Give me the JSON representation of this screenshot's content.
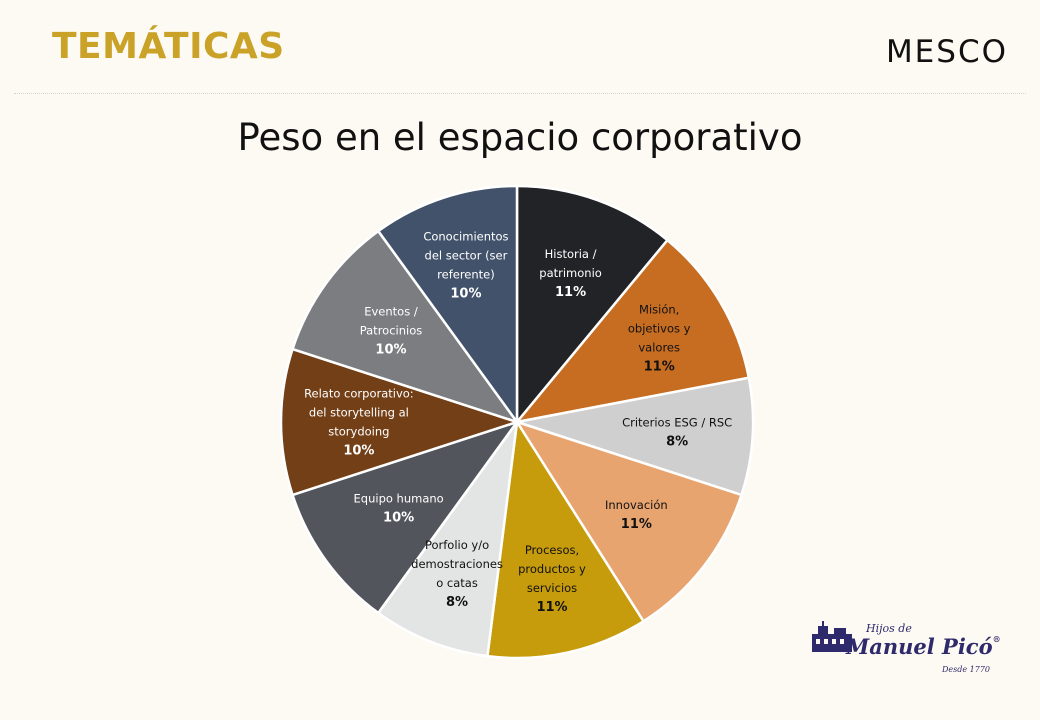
{
  "header": {
    "section_title": "TEMÁTICAS",
    "brand": "MESCO"
  },
  "logo": {
    "line1": "Hijos de",
    "line2": "Manuel Picó",
    "line3": "Desde 1770",
    "color": "#2f2a6b"
  },
  "chart_data": {
    "type": "pie",
    "title": "Peso en el espacio corporativo",
    "start": "top (12 o'clock), clockwise",
    "slices": [
      {
        "label": [
          "Historia /",
          "patrimonio"
        ],
        "pct_label": "11%",
        "value": 11,
        "color": "#222326",
        "text_color": "#ffffff"
      },
      {
        "label": [
          "Misión,",
          "objetivos y",
          "valores"
        ],
        "pct_label": "11%",
        "value": 11,
        "color": "#c66d22",
        "text_color": "#111111"
      },
      {
        "label": [
          "Criterios ESG / RSC"
        ],
        "pct_label": "8%",
        "value": 8,
        "color": "#cfcfcf",
        "text_color": "#111111"
      },
      {
        "label": [
          "Innovación"
        ],
        "pct_label": "11%",
        "value": 11,
        "color": "#e8a46f",
        "text_color": "#111111"
      },
      {
        "label": [
          "Procesos,",
          "productos y",
          "servicios"
        ],
        "pct_label": "11%",
        "value": 11,
        "color": "#c69c0c",
        "text_color": "#111111"
      },
      {
        "label": [
          "Porfolio y/o",
          "demostraciones",
          "o catas"
        ],
        "pct_label": "8%",
        "value": 8,
        "color": "#e3e5e5",
        "text_color": "#111111"
      },
      {
        "label": [
          "Equipo humano"
        ],
        "pct_label": "10%",
        "value": 10,
        "color": "#52555c",
        "text_color": "#ffffff"
      },
      {
        "label": [
          "Relato corporativo:",
          "del storytelling al",
          "storydoing"
        ],
        "pct_label": "10%",
        "value": 10,
        "color": "#733f17",
        "text_color": "#ffffff"
      },
      {
        "label": [
          "Eventos /",
          "Patrocinios"
        ],
        "pct_label": "10%",
        "value": 10,
        "color": "#7b7d80",
        "text_color": "#ffffff"
      },
      {
        "label": [
          "Conocimientos",
          "del sector (ser",
          "referente)"
        ],
        "pct_label": "10%",
        "value": 10,
        "color": "#42526b",
        "text_color": "#ffffff"
      }
    ]
  }
}
